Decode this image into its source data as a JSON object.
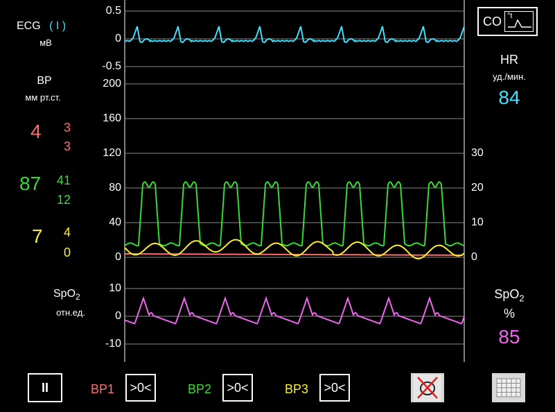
{
  "colors": {
    "ecg": "#40e0ff",
    "bp1": "#ff6f6f",
    "bp2": "#33dd33",
    "bp3": "#ffee33",
    "spo2": "#ee66ee",
    "grid": "#8a8a8a",
    "text": "#ffffff"
  },
  "left": {
    "ecg_title": "ECG",
    "ecg_lead": "( I )",
    "ecg_unit": "мВ",
    "bp_title": "BP",
    "bp_unit": "мм рт.ст.",
    "bp1": {
      "mean": "4",
      "sys": "3",
      "dia": "3"
    },
    "bp2": {
      "mean": "87",
      "sys": "41",
      "dia": "12"
    },
    "bp3": {
      "mean": "7",
      "sys": "4",
      "dia": "0"
    },
    "spo2_title": "SpO",
    "spo2_sub": "2",
    "spo2_unit": "отн.ед."
  },
  "right": {
    "co_label": "CO",
    "co_icon_label": "°t",
    "hr_title": "HR",
    "hr_unit": "уд./мин.",
    "hr_value": "84",
    "spo2_title": "SpO",
    "spo2_sub": "2",
    "spo2_unit": "%",
    "spo2_value": "85"
  },
  "axes": {
    "ecg_ticks": [
      "0.5",
      "0",
      "-0.5"
    ],
    "bp_ticks": [
      "200",
      "160",
      "120",
      "80",
      "40",
      "0"
    ],
    "bp_right_ticks": [
      "30",
      "20",
      "10",
      "0"
    ],
    "spo2_ticks": [
      "10",
      "0",
      "-10"
    ]
  },
  "toolbar": {
    "pause_label": "II",
    "bp1_label": "BP1",
    "bp2_label": "BP2",
    "bp3_label": "BP3",
    "zero_label": ">0<",
    "mute_icon": "alarm-mute-icon",
    "grid_icon": "grid-icon"
  },
  "chart_data": [
    {
      "type": "line",
      "name": "ECG",
      "ylim": [
        -0.5,
        0.5
      ],
      "series": [
        {
          "name": "ECG",
          "values": [
            0,
            0.12,
            0.3,
            0.05,
            0,
            -0.05,
            0
          ]
        }
      ]
    },
    {
      "type": "line",
      "name": "BP",
      "ylim": [
        0,
        200
      ],
      "series": [
        {
          "name": "BP1",
          "values": [
            4,
            3,
            3
          ]
        },
        {
          "name": "BP2",
          "values": [
            12,
            87,
            41
          ]
        },
        {
          "name": "BP3",
          "values": [
            0,
            7,
            4
          ]
        }
      ]
    },
    {
      "type": "line",
      "name": "SpO2",
      "ylim": [
        -10,
        10
      ],
      "series": [
        {
          "name": "SpO2",
          "values": [
            -3,
            6,
            1,
            -3
          ]
        }
      ]
    }
  ]
}
